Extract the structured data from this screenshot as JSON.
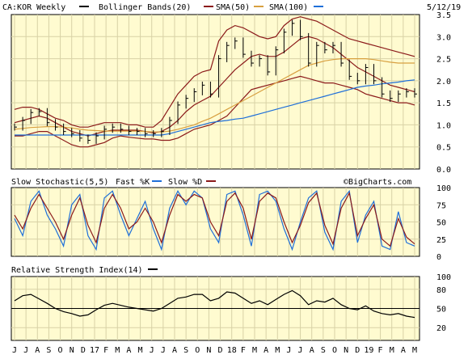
{
  "chart_data": [
    {
      "type": "line",
      "panel": "price",
      "symbol": "CA:KOR Weekly",
      "date": "5/12/19",
      "watermark": "©BigCharts.com",
      "legend": [
        {
          "name": "Bollinger Bands(20)",
          "color": "#000000"
        },
        {
          "name": "SMA(50)",
          "color": "#8b1a1a"
        },
        {
          "name": "SMA(100)",
          "color": "#d8a040"
        },
        {
          "name": "",
          "color": "#1e6fd9"
        }
      ],
      "ylim": [
        0.0,
        3.5
      ],
      "yticks": [
        "0.0",
        "0.5",
        "1.0",
        "1.5",
        "2.0",
        "2.5",
        "3.0",
        "3.5"
      ],
      "grid": true,
      "x": [
        0,
        1,
        2,
        3,
        4,
        5,
        6,
        7,
        8,
        9,
        10,
        11,
        12,
        13,
        14,
        15,
        16,
        17,
        18,
        19,
        20,
        21,
        22,
        23,
        24,
        25,
        26,
        27,
        28,
        29,
        30,
        31,
        32,
        33,
        34,
        35,
        36,
        37,
        38,
        39,
        40,
        41,
        42,
        43,
        44,
        45,
        46,
        47,
        48,
        49
      ],
      "close": [
        0.95,
        1.1,
        1.28,
        1.3,
        1.05,
        0.95,
        0.85,
        0.8,
        0.7,
        0.65,
        0.75,
        0.9,
        0.95,
        0.9,
        0.85,
        0.85,
        0.8,
        0.8,
        0.85,
        1.1,
        1.45,
        1.6,
        1.75,
        1.9,
        1.7,
        2.5,
        2.8,
        2.9,
        2.6,
        2.4,
        2.5,
        2.2,
        2.7,
        3.1,
        3.3,
        3.0,
        2.4,
        2.8,
        2.7,
        2.8,
        2.4,
        2.1,
        2.0,
        2.3,
        2.0,
        1.7,
        1.6,
        1.7,
        1.75,
        1.7
      ],
      "series": [
        {
          "name": "Bollinger Bands(20)",
          "values": [
            1.35,
            1.4,
            1.4,
            1.35,
            1.25,
            1.15,
            1.1,
            1.0,
            0.95,
            0.95,
            1.0,
            1.05,
            1.05,
            1.05,
            1.0,
            1.0,
            0.95,
            0.95,
            1.1,
            1.4,
            1.7,
            1.9,
            2.1,
            2.2,
            2.25,
            2.9,
            3.15,
            3.25,
            3.2,
            3.1,
            3.0,
            2.95,
            3.0,
            3.25,
            3.4,
            3.45,
            3.4,
            3.35,
            3.25,
            3.15,
            3.05,
            2.95,
            2.9,
            2.85,
            2.8,
            2.75,
            2.7,
            2.65,
            2.6,
            2.55
          ]
        },
        {
          "name": "Bollinger Bands(20)",
          "values": [
            0.75,
            0.75,
            0.8,
            0.85,
            0.85,
            0.75,
            0.65,
            0.55,
            0.5,
            0.5,
            0.55,
            0.6,
            0.7,
            0.75,
            0.72,
            0.7,
            0.68,
            0.68,
            0.65,
            0.65,
            0.7,
            0.8,
            0.9,
            0.95,
            1.0,
            1.1,
            1.2,
            1.4,
            1.6,
            1.8,
            1.85,
            1.9,
            1.95,
            2.0,
            2.05,
            2.1,
            2.05,
            2.0,
            1.95,
            1.95,
            1.9,
            1.85,
            1.8,
            1.7,
            1.65,
            1.6,
            1.55,
            1.5,
            1.5,
            1.45
          ]
        },
        {
          "name": "SMA(50)",
          "values": [
            1.05,
            1.1,
            1.15,
            1.2,
            1.15,
            1.05,
            0.95,
            0.85,
            0.8,
            0.75,
            0.8,
            0.85,
            0.88,
            0.88,
            0.88,
            0.88,
            0.85,
            0.82,
            0.85,
            0.95,
            1.1,
            1.3,
            1.45,
            1.55,
            1.65,
            1.85,
            2.05,
            2.25,
            2.4,
            2.55,
            2.6,
            2.55,
            2.55,
            2.65,
            2.8,
            2.95,
            3.0,
            2.95,
            2.85,
            2.75,
            2.6,
            2.45,
            2.3,
            2.2,
            2.1,
            2.0,
            1.9,
            1.85,
            1.8,
            1.75
          ]
        },
        {
          "name": "SMA(100)",
          "values": [
            0.9,
            0.92,
            0.94,
            0.95,
            0.96,
            0.96,
            0.95,
            0.93,
            0.9,
            0.88,
            0.87,
            0.86,
            0.86,
            0.86,
            0.86,
            0.86,
            0.85,
            0.84,
            0.84,
            0.86,
            0.9,
            0.95,
            1.0,
            1.08,
            1.15,
            1.25,
            1.35,
            1.45,
            1.55,
            1.65,
            1.75,
            1.85,
            1.95,
            2.05,
            2.15,
            2.25,
            2.35,
            2.4,
            2.45,
            2.48,
            2.5,
            2.5,
            2.5,
            2.5,
            2.48,
            2.45,
            2.42,
            2.4,
            2.4,
            2.4
          ]
        },
        {
          "name": "",
          "values": [
            0.77,
            0.77,
            0.77,
            0.77,
            0.77,
            0.77,
            0.77,
            0.77,
            0.77,
            0.77,
            0.77,
            0.77,
            0.77,
            0.77,
            0.77,
            0.77,
            0.77,
            0.77,
            0.77,
            0.8,
            0.85,
            0.9,
            0.95,
            1.0,
            1.05,
            1.08,
            1.1,
            1.13,
            1.15,
            1.2,
            1.25,
            1.3,
            1.35,
            1.4,
            1.45,
            1.5,
            1.55,
            1.6,
            1.65,
            1.7,
            1.75,
            1.8,
            1.85,
            1.88,
            1.9,
            1.93,
            1.95,
            1.97,
            2.0,
            2.02
          ]
        }
      ]
    },
    {
      "type": "line",
      "panel": "stochastic",
      "title": "Slow Stochastic(5,5)",
      "legend": [
        {
          "name": "Fast %K",
          "color": "#1e6fd9"
        },
        {
          "name": "Slow %D",
          "color": "#8b1a1a"
        }
      ],
      "ylim": [
        0,
        100
      ],
      "yticks": [
        "0",
        "25",
        "50",
        "75",
        "100"
      ],
      "grid": true,
      "x": [
        0,
        1,
        2,
        3,
        4,
        5,
        6,
        7,
        8,
        9,
        10,
        11,
        12,
        13,
        14,
        15,
        16,
        17,
        18,
        19,
        20,
        21,
        22,
        23,
        24,
        25,
        26,
        27,
        28,
        29,
        30,
        31,
        32,
        33,
        34,
        35,
        36,
        37,
        38,
        39,
        40,
        41,
        42,
        43,
        44,
        45,
        46,
        47,
        48,
        49
      ],
      "series": [
        {
          "name": "Fast %K",
          "values": [
            55,
            30,
            80,
            95,
            60,
            40,
            15,
            75,
            90,
            30,
            10,
            85,
            95,
            60,
            30,
            55,
            80,
            40,
            10,
            70,
            95,
            75,
            95,
            85,
            40,
            20,
            90,
            95,
            60,
            15,
            90,
            95,
            80,
            40,
            10,
            50,
            85,
            95,
            35,
            10,
            80,
            95,
            20,
            60,
            80,
            15,
            10,
            65,
            20,
            15
          ]
        },
        {
          "name": "Slow %D",
          "values": [
            60,
            40,
            70,
            90,
            70,
            50,
            25,
            60,
            85,
            45,
            20,
            70,
            90,
            70,
            40,
            50,
            70,
            50,
            20,
            60,
            90,
            80,
            90,
            85,
            50,
            30,
            80,
            92,
            70,
            25,
            80,
            92,
            85,
            50,
            20,
            45,
            78,
            92,
            45,
            18,
            70,
            92,
            30,
            55,
            75,
            25,
            15,
            55,
            28,
            18
          ]
        }
      ]
    },
    {
      "type": "line",
      "panel": "rsi",
      "title": "Relative Strength Index(14)",
      "legend": [
        {
          "name": "",
          "color": "#000000"
        }
      ],
      "ylim": [
        0,
        100
      ],
      "yticks": [
        "20",
        "50",
        "80",
        "100"
      ],
      "reference_line": 50,
      "grid": true,
      "x": [
        0,
        1,
        2,
        3,
        4,
        5,
        6,
        7,
        8,
        9,
        10,
        11,
        12,
        13,
        14,
        15,
        16,
        17,
        18,
        19,
        20,
        21,
        22,
        23,
        24,
        25,
        26,
        27,
        28,
        29,
        30,
        31,
        32,
        33,
        34,
        35,
        36,
        37,
        38,
        39,
        40,
        41,
        42,
        43,
        44,
        45,
        46,
        47,
        48,
        49
      ],
      "series": [
        {
          "name": "RSI(14)",
          "values": [
            62,
            70,
            72,
            65,
            58,
            50,
            45,
            42,
            38,
            40,
            48,
            55,
            58,
            55,
            52,
            50,
            48,
            46,
            50,
            58,
            66,
            68,
            72,
            72,
            62,
            66,
            76,
            74,
            66,
            58,
            62,
            56,
            64,
            72,
            78,
            70,
            56,
            62,
            60,
            66,
            56,
            50,
            48,
            54,
            46,
            42,
            40,
            42,
            38,
            36
          ]
        }
      ]
    }
  ],
  "x_axis": {
    "labels": [
      "J",
      "J",
      "A",
      "S",
      "O",
      "N",
      "D",
      "17",
      "F",
      "M",
      "A",
      "M",
      "J",
      "J",
      "A",
      "S",
      "O",
      "N",
      "D",
      "18",
      "F",
      "M",
      "A",
      "M",
      "J",
      "J",
      "A",
      "S",
      "O",
      "N",
      "D",
      "19",
      "F",
      "M",
      "A",
      "M"
    ]
  }
}
